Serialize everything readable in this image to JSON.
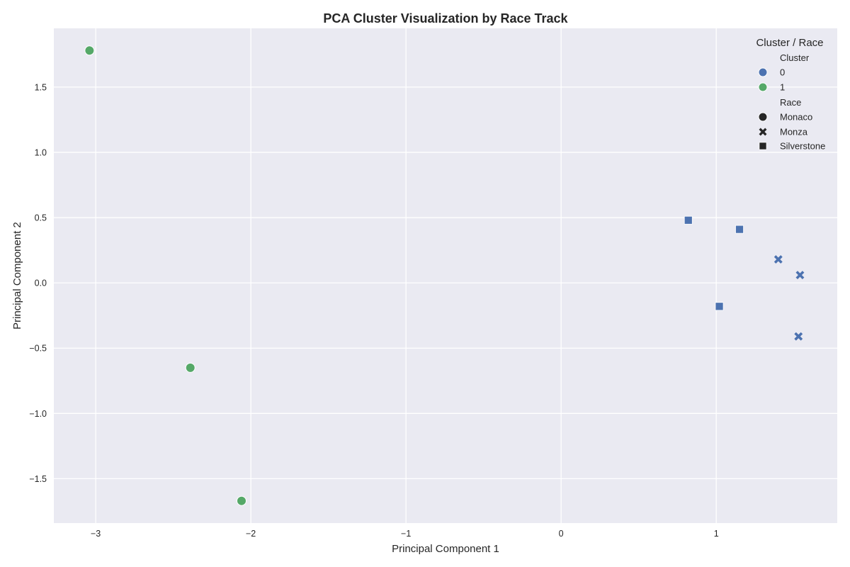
{
  "chart_data": {
    "type": "scatter",
    "title": "PCA Cluster Visualization by Race Track",
    "xlabel": "Principal Component 1",
    "ylabel": "Principal Component 2",
    "xlim": [
      -3.27,
      1.78
    ],
    "ylim": [
      -1.84,
      1.95
    ],
    "x_ticks": [
      -3,
      -2,
      -1,
      0,
      1
    ],
    "y_ticks": [
      -1.5,
      -1.0,
      -0.5,
      0.0,
      0.5,
      1.0,
      1.5
    ],
    "x_tick_labels": [
      "−3",
      "−2",
      "−1",
      "0",
      "1"
    ],
    "y_tick_labels": [
      "−1.5",
      "−1.0",
      "−0.5",
      "0.0",
      "0.5",
      "1.0",
      "1.5"
    ],
    "grid": true,
    "legend_position": "top-right",
    "background_color": "#eaeaf2",
    "legend": {
      "title": "Cluster / Race",
      "hue_title": "Cluster",
      "hue_entries": [
        {
          "label": "0",
          "color": "#4c72b0"
        },
        {
          "label": "1",
          "color": "#55a868"
        }
      ],
      "style_title": "Race",
      "style_entries": [
        {
          "label": "Monaco",
          "marker": "circle"
        },
        {
          "label": "Monza",
          "marker": "x"
        },
        {
          "label": "Silverstone",
          "marker": "square"
        }
      ]
    },
    "points": [
      {
        "x": -3.04,
        "y": 1.78,
        "cluster": "1",
        "race": "Monaco"
      },
      {
        "x": -2.39,
        "y": -0.65,
        "cluster": "1",
        "race": "Monaco"
      },
      {
        "x": -2.06,
        "y": -1.67,
        "cluster": "1",
        "race": "Monaco"
      },
      {
        "x": 0.82,
        "y": 0.48,
        "cluster": "0",
        "race": "Silverstone"
      },
      {
        "x": 1.15,
        "y": 0.41,
        "cluster": "0",
        "race": "Silverstone"
      },
      {
        "x": 1.02,
        "y": -0.18,
        "cluster": "0",
        "race": "Silverstone"
      },
      {
        "x": 1.4,
        "y": 0.18,
        "cluster": "0",
        "race": "Monza"
      },
      {
        "x": 1.54,
        "y": 0.06,
        "cluster": "0",
        "race": "Monza"
      },
      {
        "x": 1.53,
        "y": -0.41,
        "cluster": "0",
        "race": "Monza"
      }
    ]
  }
}
